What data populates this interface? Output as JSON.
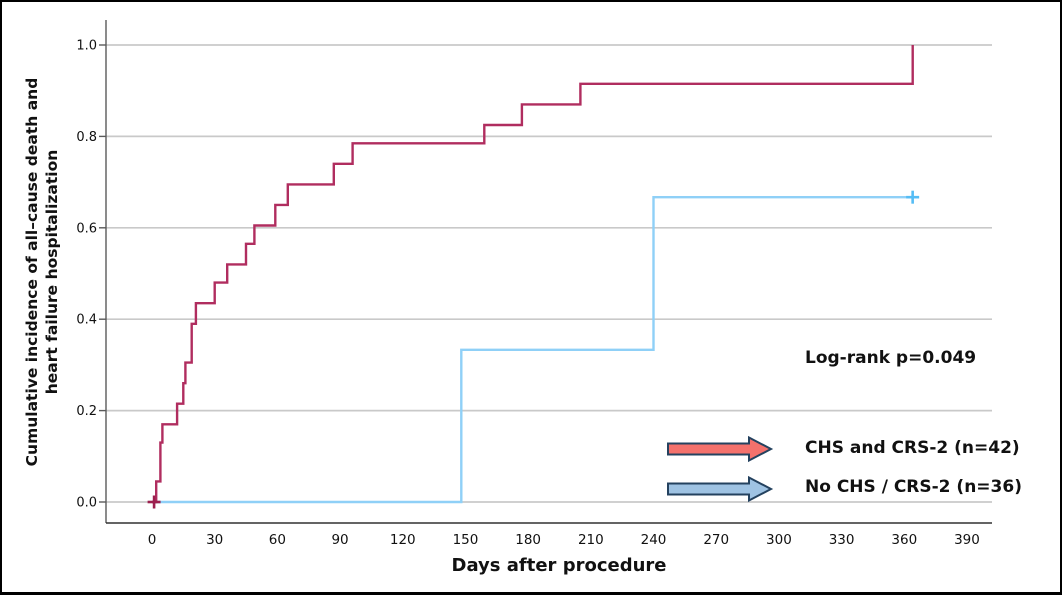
{
  "chart_data": {
    "type": "line",
    "subtype": "kaplan-meier-cumulative-incidence-step-curve",
    "title": "",
    "xlabel": "Days after procedure",
    "ylabel": "Cumulative incidence of all–cause death and heart failure hospitalization",
    "ylabel_lines": [
      "Cumulative incidence of all–cause death and",
      "heart failure hospitalization"
    ],
    "xticks": [
      0,
      30,
      60,
      90,
      120,
      150,
      180,
      210,
      240,
      270,
      300,
      330,
      360,
      390
    ],
    "yticks": [
      "0.0",
      "0.2",
      "0.4",
      "0.6",
      "0.8",
      "1.0"
    ],
    "xlim": [
      -22,
      402
    ],
    "ylim": [
      0.0,
      1.0
    ],
    "grid": "horizontal",
    "grid_color": "#c9c9c9",
    "axis_color": "#5a5a5a",
    "x_axis_color": "#303030",
    "annotation": "Log-rank p=0.049",
    "series": [
      {
        "id": "chs-and-crs-2",
        "name": "CHS and CRS-2 (n=42)",
        "n": 42,
        "color": "#b02d5f",
        "censor_color": "#9c1f4e",
        "steps": [
          [
            0,
            0
          ],
          [
            2,
            0.045
          ],
          [
            4,
            0.13
          ],
          [
            5,
            0.17
          ],
          [
            12,
            0.215
          ],
          [
            15,
            0.26
          ],
          [
            16,
            0.305
          ],
          [
            19,
            0.39
          ],
          [
            21,
            0.435
          ],
          [
            30,
            0.48
          ],
          [
            36,
            0.52
          ],
          [
            45,
            0.565
          ],
          [
            49,
            0.605
          ],
          [
            59,
            0.65
          ],
          [
            65,
            0.695
          ],
          [
            87,
            0.74
          ],
          [
            96,
            0.785
          ],
          [
            159,
            0.825
          ],
          [
            177,
            0.87
          ],
          [
            205,
            0.915
          ],
          [
            364,
            1.0
          ]
        ],
        "censor_marks": [
          [
            1,
            0
          ]
        ]
      },
      {
        "id": "no-chs-crs-2",
        "name": "No CHS / CRS-2 (n=36)",
        "n": 36,
        "color": "#8fd0f7",
        "censor_color": "#55bdf5",
        "steps": [
          [
            0,
            0
          ],
          [
            148,
            0.333
          ],
          [
            240,
            0.667
          ],
          [
            364,
            0.667
          ]
        ],
        "censor_marks": [
          [
            364,
            0.667
          ]
        ]
      }
    ],
    "legend": [
      {
        "label": "CHS and CRS-2 (n=42)",
        "arrow_fill": "#f4716c",
        "arrow_outline": "#24425f"
      },
      {
        "label": "No CHS / CRS-2 (n=36)",
        "arrow_fill": "#9fc3e3",
        "arrow_outline": "#24425f"
      }
    ],
    "legend_position": "lower-right-inside"
  }
}
